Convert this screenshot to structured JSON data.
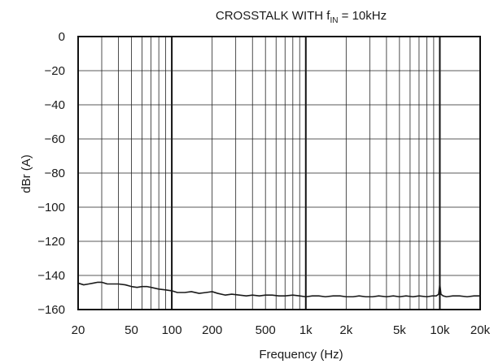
{
  "chart_data": {
    "type": "line",
    "title": {
      "prefix": "CROSSTALK WITH f",
      "subscript": "IN",
      "suffix": " = 10kHz"
    },
    "xlabel": "Frequency (Hz)",
    "ylabel": "dBr (A)",
    "xscale": "log",
    "xlim": [
      20,
      20000
    ],
    "ylim": [
      -160,
      0
    ],
    "grid": true,
    "x_ticks": [
      {
        "value": 20,
        "label": "20"
      },
      {
        "value": 50,
        "label": "50"
      },
      {
        "value": 100,
        "label": "100"
      },
      {
        "value": 200,
        "label": "200"
      },
      {
        "value": 500,
        "label": "500"
      },
      {
        "value": 1000,
        "label": "1k"
      },
      {
        "value": 2000,
        "label": "2k"
      },
      {
        "value": 5000,
        "label": "5k"
      },
      {
        "value": 10000,
        "label": "10k"
      },
      {
        "value": 20000,
        "label": "20k"
      }
    ],
    "y_ticks": [
      {
        "value": 0,
        "label": "0"
      },
      {
        "value": -20,
        "label": "−20"
      },
      {
        "value": -40,
        "label": "−40"
      },
      {
        "value": -60,
        "label": "−60"
      },
      {
        "value": -80,
        "label": "−80"
      },
      {
        "value": -100,
        "label": "−100"
      },
      {
        "value": -120,
        "label": "−120"
      },
      {
        "value": -140,
        "label": "−140"
      },
      {
        "value": -160,
        "label": "−160"
      }
    ],
    "series": [
      {
        "x": [
          20,
          22,
          24,
          26,
          28,
          30,
          33,
          36,
          40,
          45,
          50,
          55,
          60,
          65,
          70,
          80,
          90,
          100,
          110,
          125,
          140,
          160,
          180,
          200,
          220,
          250,
          280,
          320,
          360,
          400,
          450,
          500,
          560,
          630,
          700,
          800,
          900,
          1000,
          1120,
          1250,
          1400,
          1600,
          1800,
          2000,
          2250,
          2500,
          2800,
          3150,
          3500,
          4000,
          4500,
          5000,
          5600,
          6300,
          7000,
          8000,
          8800,
          9400,
          9800,
          10000,
          10200,
          10600,
          11200,
          12500,
          14000,
          16000,
          18000,
          20000
        ],
        "y": [
          -144.5,
          -145.5,
          -145,
          -144.5,
          -144,
          -144,
          -145,
          -145,
          -145,
          -145.5,
          -146.5,
          -147,
          -146.5,
          -146.5,
          -147,
          -148,
          -148.5,
          -149,
          -150,
          -150,
          -149.5,
          -150.5,
          -150,
          -149.5,
          -150.5,
          -151.5,
          -151,
          -151.5,
          -152,
          -151.5,
          -152,
          -151.5,
          -151.5,
          -152,
          -152,
          -151.5,
          -152,
          -152.5,
          -152,
          -152,
          -152.5,
          -152,
          -152,
          -152.5,
          -152.5,
          -152,
          -152.5,
          -152.5,
          -152,
          -152.5,
          -152,
          -152.5,
          -152,
          -152.5,
          -152,
          -152.5,
          -152,
          -152,
          -151,
          -145,
          -151,
          -152,
          -152.5,
          -152,
          -152,
          -152.5,
          -152,
          -152
        ]
      }
    ]
  }
}
